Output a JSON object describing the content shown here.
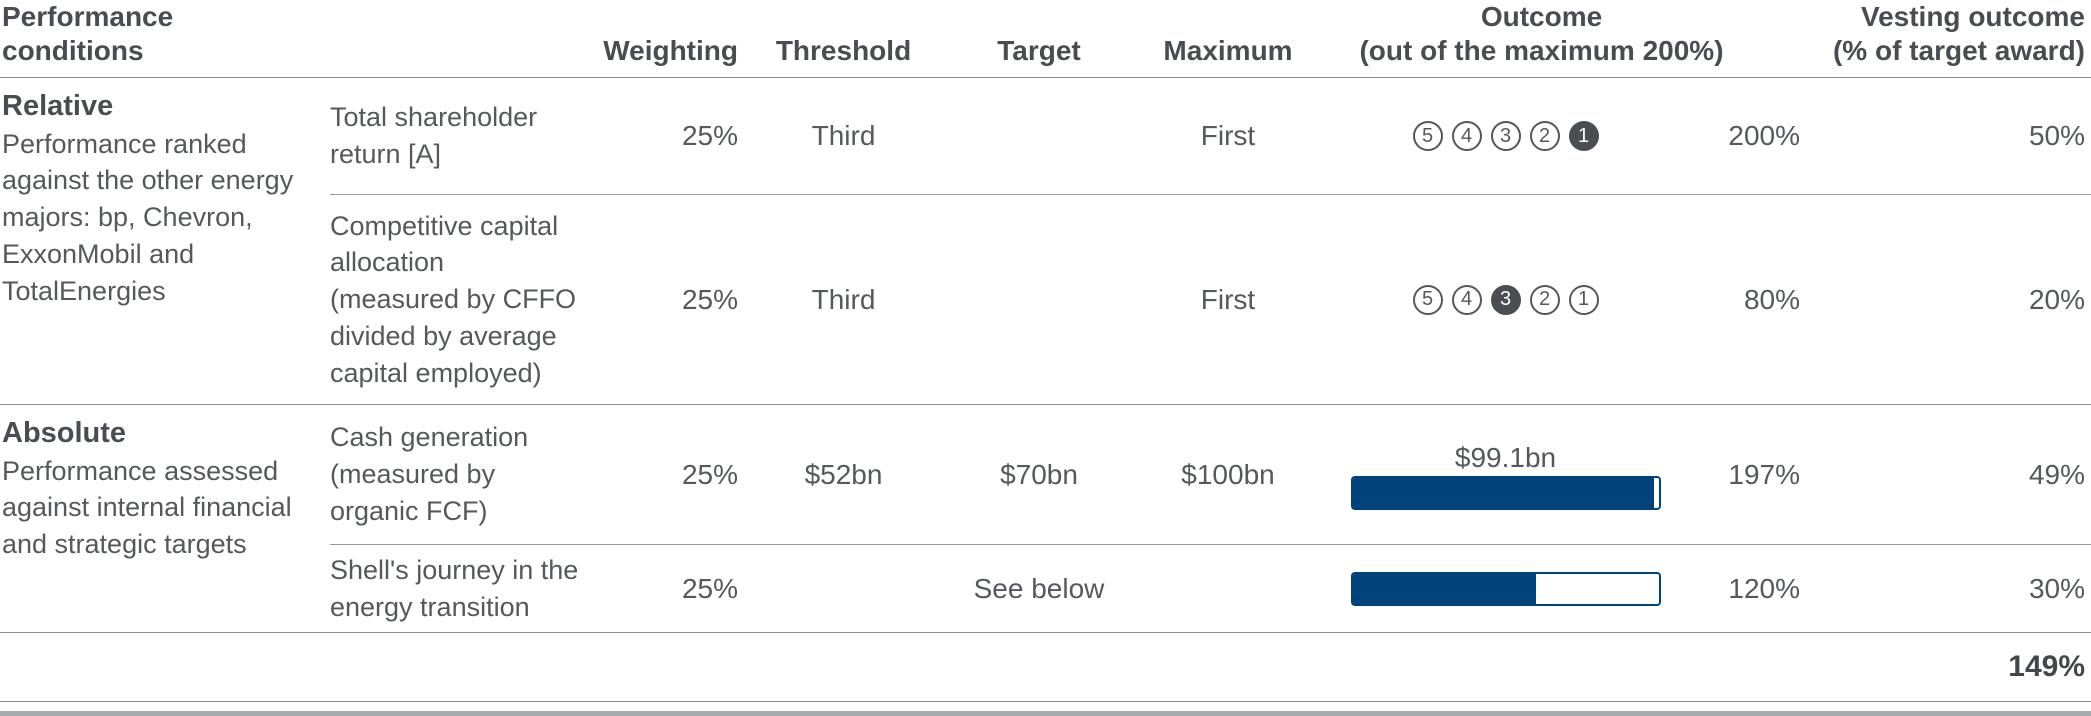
{
  "colors": {
    "navy_bar": "#00437a",
    "chip_active_fill": "#4a4e53",
    "body_text": "#55585c",
    "heading_text": "#494d51",
    "rule_line": "#8a8c8f"
  },
  "header": {
    "performance_conditions": "Performance conditions",
    "weighting": "Weighting",
    "threshold": "Threshold",
    "target": "Target",
    "maximum": "Maximum",
    "outcome_line1": "Outcome",
    "outcome_line2": "(out of the maximum 200%)",
    "vesting_line1": "Vesting outcome",
    "vesting_line2": "(% of target award)"
  },
  "rank_scale": [
    5,
    4,
    3,
    2,
    1
  ],
  "sections": [
    {
      "title": "Relative",
      "description": "Performance ranked against the other energy majors: bp, Chevron, ExxonMobil and TotalEnergies",
      "rows": [
        {
          "measure": "Total shareholder return [A]",
          "weighting": "25%",
          "threshold": "Third",
          "target": "",
          "maximum": "First",
          "indicator": {
            "type": "rank",
            "active": 1
          },
          "outcome": "200%",
          "vesting": "50%"
        },
        {
          "measure": "Competitive capital allocation (measured by CFFO divided by average capital employed)",
          "weighting": "25%",
          "threshold": "Third",
          "target": "",
          "maximum": "First",
          "indicator": {
            "type": "rank",
            "active": 3
          },
          "outcome": "80%",
          "vesting": "20%"
        }
      ]
    },
    {
      "title": "Absolute",
      "description": "Performance assessed against internal financial and strategic targets",
      "rows": [
        {
          "measure": "Cash generation (measured by organic FCF)",
          "weighting": "25%",
          "threshold": "$52bn",
          "target": "$70bn",
          "maximum": "$100bn",
          "indicator": {
            "type": "bar",
            "label": "$99.1bn",
            "percent": 98.5
          },
          "outcome": "197%",
          "vesting": "49%"
        },
        {
          "measure": "Shell's journey in the energy transition",
          "weighting": "25%",
          "threshold": "",
          "target": "See below",
          "maximum": "",
          "indicator": {
            "type": "bar",
            "label": "",
            "percent": 60
          },
          "outcome": "120%",
          "vesting": "30%"
        }
      ]
    }
  ],
  "total": {
    "vesting": "149%"
  }
}
